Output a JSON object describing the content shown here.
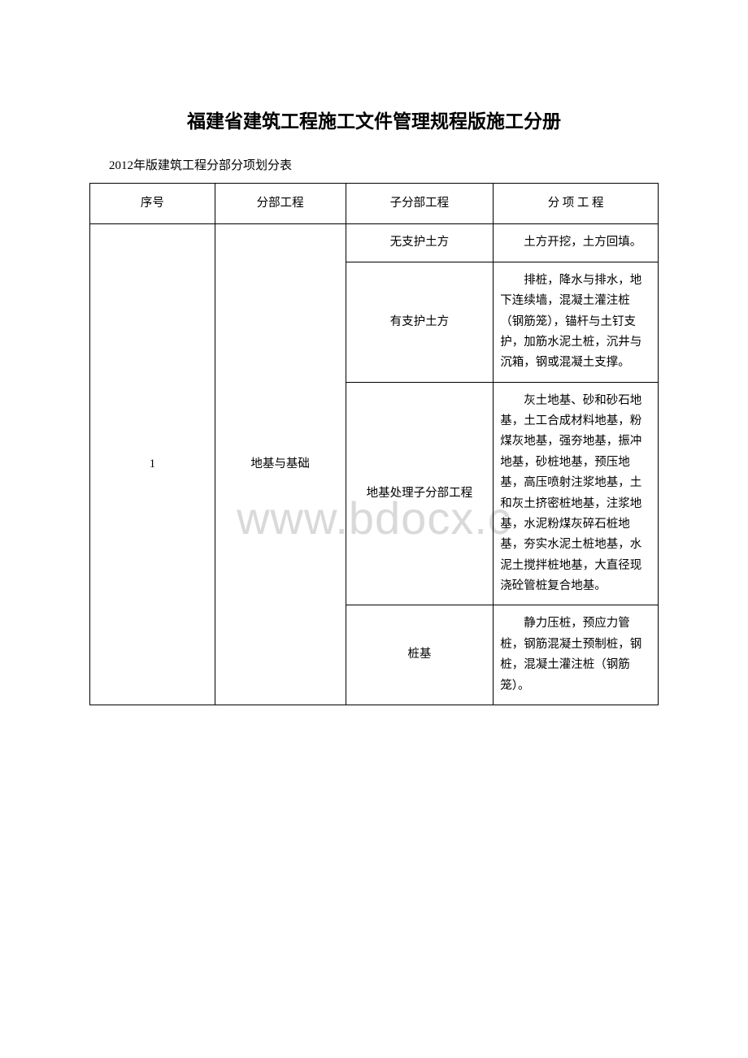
{
  "document": {
    "title": "福建省建筑工程施工文件管理规程版施工分册",
    "subtitle": "2012年版建筑工程分部分项划分表",
    "watermark": "www.bdocx.c",
    "background_color": "#ffffff",
    "text_color": "#000000",
    "watermark_color": "#d9d9d9",
    "title_fontsize": 23,
    "body_fontsize": 14.5
  },
  "table": {
    "columns": [
      "序号",
      "分部工程",
      "子分部工程",
      "分 项 工 程"
    ],
    "column_widths": [
      "22%",
      "23%",
      "26%",
      "29%"
    ],
    "border_color": "#000000",
    "rows": [
      {
        "seq": "1",
        "division": "地基与基础",
        "sub_rows": [
          {
            "sub_division": "无支护土方",
            "items": "土方开挖，土方回填。"
          },
          {
            "sub_division": "有支护土方",
            "items": "排桩，降水与排水，地下连续墙，混凝土灌注桩（钢筋笼），锚杆与土钉支护，加筋水泥土桩，沉井与沉箱，钢或混凝土支撑。"
          },
          {
            "sub_division": "地基处理子分部工程",
            "items": "灰土地基、砂和砂石地基，土工合成材料地基，粉煤灰地基，强夯地基，振冲地基，砂桩地基，预压地基，高压喷射注浆地基，土和灰土挤密桩地基，注浆地基，水泥粉煤灰碎石桩地基，夯实水泥土桩地基，水泥土搅拌桩地基，大直径现浇砼管桩复合地基。"
          },
          {
            "sub_division": "桩基",
            "items": "静力压桩，预应力管桩，钢筋混凝土预制桩，钢桩，混凝土灌注桩（钢筋笼）。"
          }
        ]
      }
    ]
  }
}
